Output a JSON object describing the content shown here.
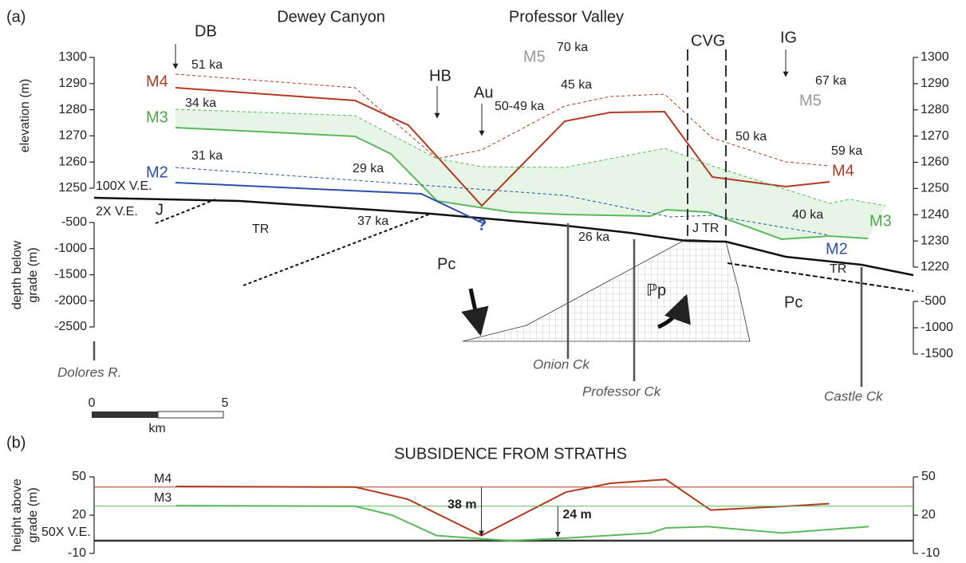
{
  "panel_a": {
    "panel_label": "(a)",
    "left_elev_label": "elevation (m)",
    "left_depth_label_1": "depth below",
    "left_depth_label_2": "grade (m)",
    "elev_lim": [
      1250,
      1300
    ],
    "elev_ticks": [
      1300,
      1290,
      1280,
      1270,
      1260,
      1250
    ],
    "depth_lim": [
      -2500,
      -500
    ],
    "depth_ticks": [
      -500,
      -1000,
      -1500,
      -2000,
      -2500
    ],
    "right_elev_lim": [
      1220,
      1300
    ],
    "right_elev_ticks": [
      1300,
      1290,
      1280,
      1270,
      1260,
      1250,
      1240,
      1230,
      1220
    ],
    "right_depth_lim": [
      -1500,
      -500
    ],
    "right_depth_ticks": [
      -500,
      -1000,
      -1500
    ],
    "labels": {
      "dewey_canyon": "Dewey Canyon",
      "professor_valley": "Professor Valley",
      "db": "DB",
      "hb": "HB",
      "au": "Au",
      "cvg": "CVG",
      "ig": "IG",
      "m4_left": "M4",
      "m3_left": "M3",
      "m2_left": "M2",
      "m4_right": "M4",
      "m3_right": "M3",
      "m2_right": "M2",
      "m5_a": "M5",
      "m5_b": "M5",
      "age_51": "51 ka",
      "age_34": "34 ka",
      "age_31": "31 ka",
      "age_29": "29 ka",
      "age_37": "37 ka",
      "age_50_49": "50-49 ka",
      "age_45": "45 ka",
      "age_70": "70 ka",
      "age_67": "67 ka",
      "age_50": "50 ka",
      "age_59": "59 ka",
      "age_40": "40 ka",
      "age_26": "26 ka",
      "ve_100": "100X V.E.",
      "ve_2": "2X V.E.",
      "j": "J",
      "tr_a": "TR",
      "tr_b": "TR",
      "jtr": "J TR",
      "pc_a": "Pc",
      "pc_b": "Pc",
      "pp": "ℙp",
      "question": "?",
      "onion": "Onion Ck",
      "professor": "Professor Ck",
      "castle": "Castle Ck",
      "dolores": "Dolores R.",
      "scale_0": "0",
      "scale_5": "5",
      "scale_km": "km"
    }
  },
  "chart_data": {
    "type": "line",
    "panel_label": "(b)",
    "title": "SUBSIDENCE FROM STRATHS",
    "y_label_1": "height above",
    "y_label_2": "grade (m)",
    "annotation_ve": "50X V.E.",
    "xlim": [
      0,
      31.2
    ],
    "ylim": [
      -10,
      50
    ],
    "yticks": [
      50,
      20,
      -10
    ],
    "series": [
      {
        "name": "M4",
        "color": "#b03a1e",
        "level": 42,
        "x": [
          3.2,
          10.0,
          12.0,
          14.8,
          18.0,
          19.7,
          21.8,
          23.5,
          26.4,
          28.0
        ],
        "values": [
          42.5,
          42,
          32.5,
          4,
          38,
          45,
          48,
          24,
          27,
          29
        ]
      },
      {
        "name": "M3",
        "color": "#5cb85c",
        "level": 27,
        "x": [
          3.2,
          10.0,
          11.4,
          13.1,
          15.9,
          18.0,
          21.2,
          21.8,
          23.4,
          26.2,
          29.5
        ],
        "values": [
          27.5,
          27,
          20,
          4,
          0,
          2,
          6,
          10,
          11,
          6,
          11
        ]
      }
    ],
    "annotations": [
      {
        "text": "38 m",
        "x": 14.8,
        "from": 42,
        "to": 4,
        "color": "#b03a1e"
      },
      {
        "text": "24 m",
        "x": 17.7,
        "from": 27,
        "to": 3,
        "color": "#5cb85c"
      }
    ]
  }
}
